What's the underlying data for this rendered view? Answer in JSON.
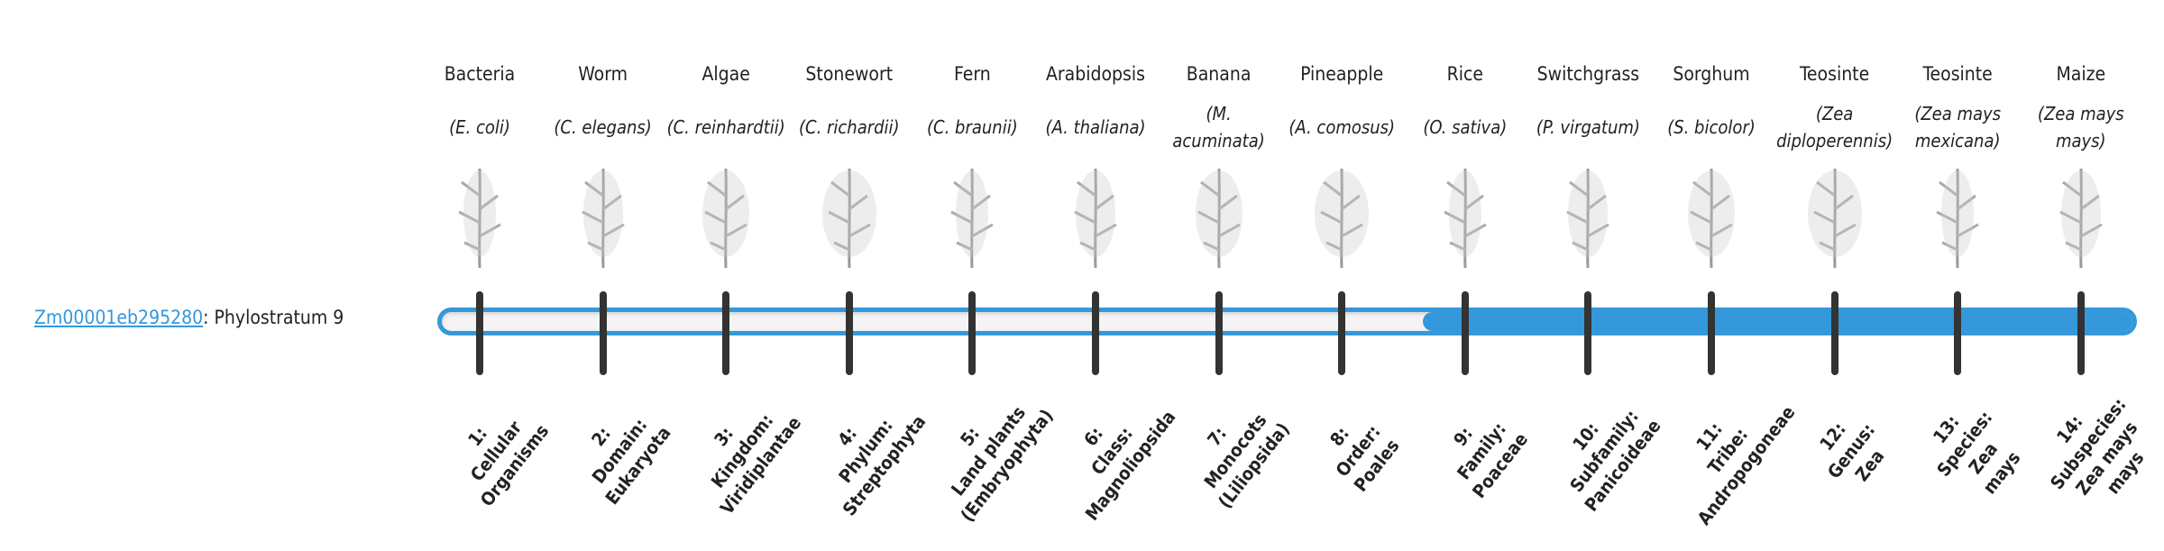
{
  "gene": {
    "id": "Zm00001eb295280",
    "suffix": ": Phylostratum 9"
  },
  "phylostratum": 9,
  "colors": {
    "accent": "#3498db",
    "tick": "#333333",
    "track": "#f4f4f4"
  },
  "strata": [
    {
      "common": "Bacteria",
      "sci": "E. coli",
      "image": "bacteria-image",
      "label": [
        "1:",
        "Cellular",
        "Organisms"
      ]
    },
    {
      "common": "Worm",
      "sci": "C. elegans",
      "image": "worm-image",
      "label": [
        "2:",
        "Domain:",
        "Eukaryota"
      ]
    },
    {
      "common": "Algae",
      "sci": "C. reinhardtii",
      "image": "algae-image",
      "label": [
        "3:",
        "Kingdom:",
        "Viridiplantae"
      ]
    },
    {
      "common": "Stonewort",
      "sci": "C. richardii",
      "image": "stonewort-image",
      "label": [
        "4:",
        "Phylum:",
        "Streptophyta"
      ]
    },
    {
      "common": "Fern",
      "sci": "C. braunii",
      "image": "fern-image",
      "label": [
        "5:",
        "Land plants",
        "(Embryophyta)"
      ]
    },
    {
      "common": "Arabidopsis",
      "sci": "A. thaliana",
      "image": "arabidopsis-image",
      "label": [
        "6:",
        "Class:",
        "Magnoliopsida"
      ]
    },
    {
      "common": "Banana",
      "sci": "M. acuminata",
      "image": "banana-image",
      "label": [
        "7:",
        "Monocots",
        "(Liliopsida)"
      ]
    },
    {
      "common": "Pineapple",
      "sci": "A. comosus",
      "image": "pineapple-image",
      "label": [
        "8:",
        "Order:",
        "Poales"
      ]
    },
    {
      "common": "Rice",
      "sci": "O. sativa",
      "image": "rice-image",
      "label": [
        "9:",
        "Family:",
        "Poaceae"
      ]
    },
    {
      "common": "Switchgrass",
      "sci": "P. virgatum",
      "image": "switchgrass-image",
      "label": [
        "10:",
        "Subfamily:",
        "Panicoideae"
      ]
    },
    {
      "common": "Sorghum",
      "sci": "S. bicolor",
      "image": "sorghum-image",
      "label": [
        "11:",
        "Tribe:",
        "Andropogoneae"
      ]
    },
    {
      "common": "Teosinte",
      "sci": "Zea diploperennis",
      "image": "teosinte-image",
      "label": [
        "12:",
        "Genus:",
        "Zea"
      ]
    },
    {
      "common": "Teosinte",
      "sci": "Zea mays mexicana",
      "image": "teosinte-mexicana-image",
      "label": [
        "13:",
        "Species:",
        "Zea",
        "mays"
      ]
    },
    {
      "common": "Maize",
      "sci": "Zea mays mays",
      "image": "maize-image",
      "label": [
        "14:",
        "Subspecies:",
        "Zea mays",
        "mays"
      ]
    }
  ]
}
